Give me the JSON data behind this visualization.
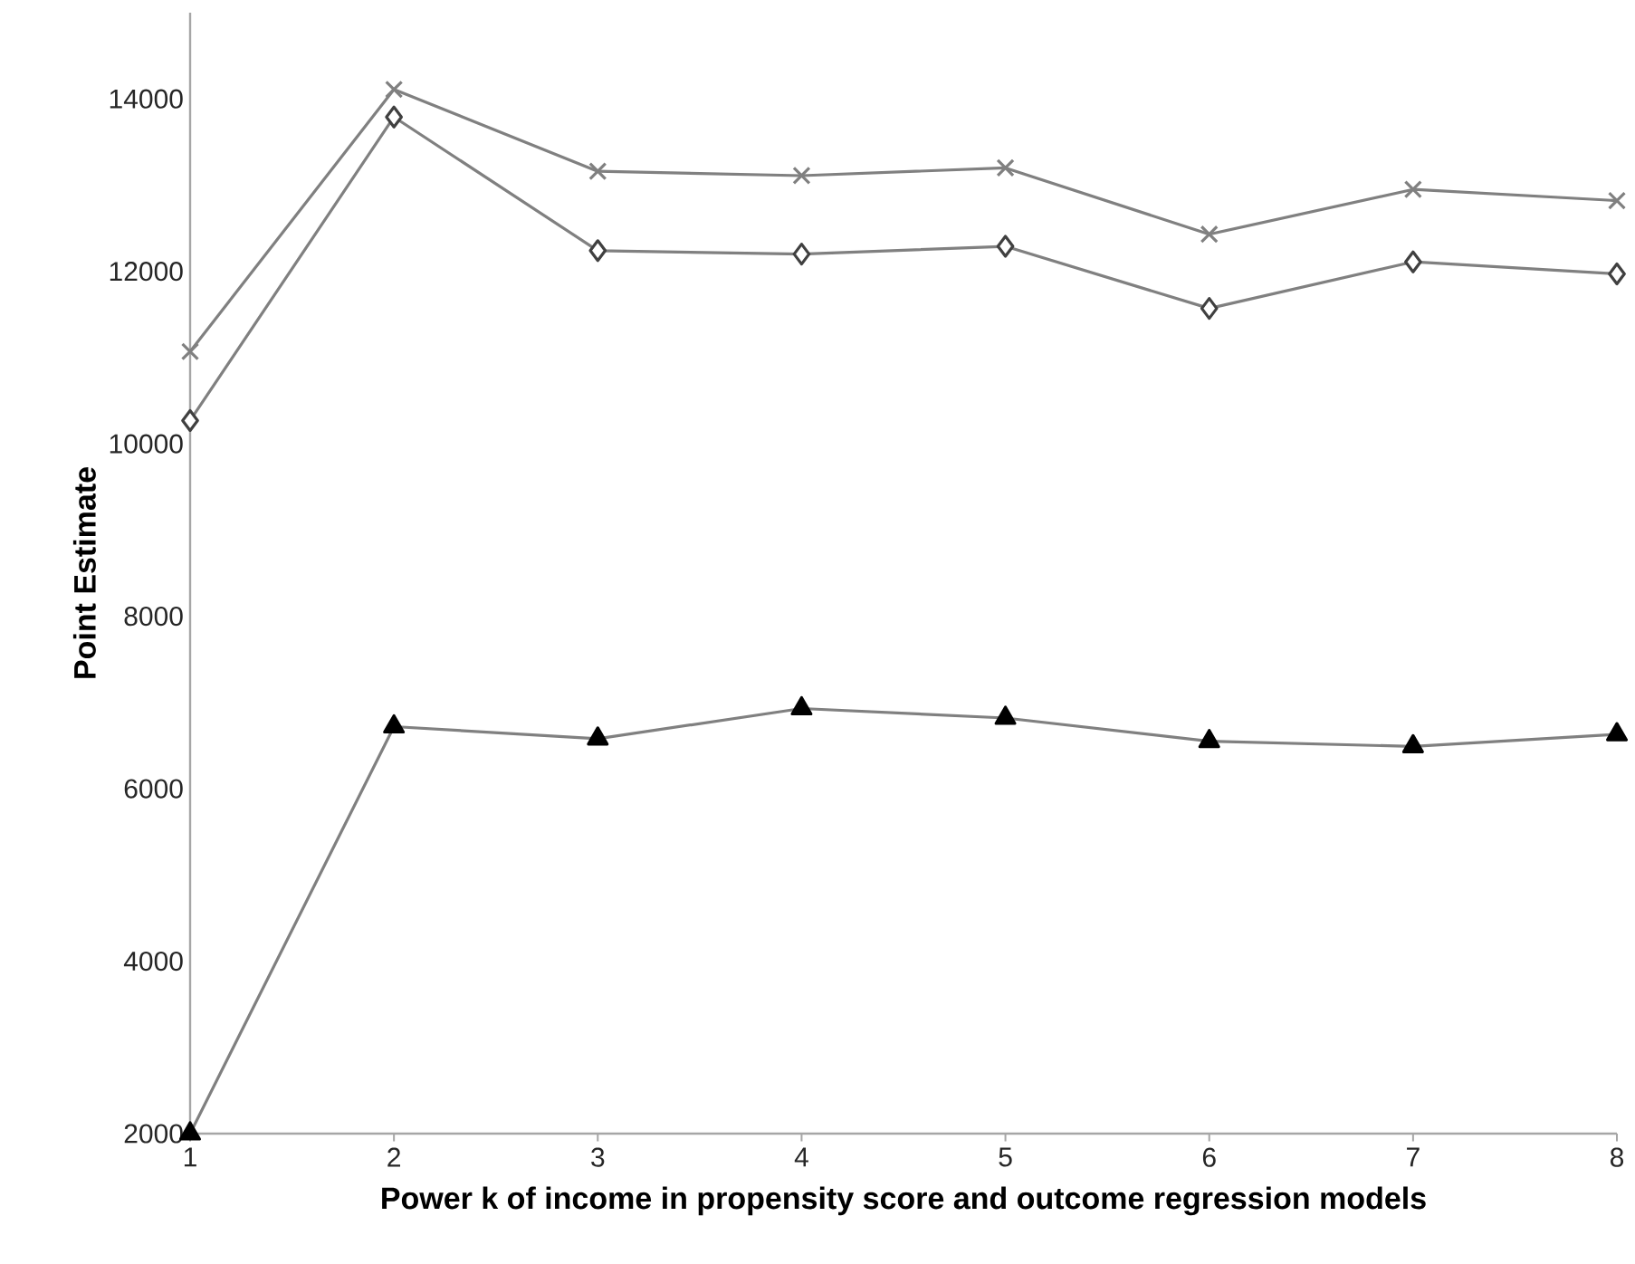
{
  "chart_data": {
    "type": "line",
    "xlabel": "Power k of income in propensity score and outcome regression models",
    "ylabel": "Point Estimate",
    "x": [
      1,
      2,
      3,
      4,
      5,
      6,
      7,
      8
    ],
    "series": [
      {
        "color": "#808080",
        "marker": "cross",
        "values": [
          11070,
          14110,
          13160,
          13110,
          13200,
          12430,
          12950,
          12820
        ]
      },
      {
        "color": "#808080",
        "marker": "diamond",
        "values": [
          10270,
          13790,
          12240,
          12200,
          12290,
          11570,
          12110,
          11970
        ]
      },
      {
        "color": "#808080",
        "marker": "triangle",
        "values": [
          2000,
          6720,
          6580,
          6930,
          6820,
          6550,
          6490,
          6630
        ]
      }
    ],
    "xlim": [
      1,
      8
    ],
    "xticks": [
      1,
      2,
      3,
      4,
      5,
      6,
      7,
      8
    ],
    "ylim": [
      2000,
      15000
    ],
    "yticks": [
      2000,
      4000,
      6000,
      8000,
      10000,
      12000,
      14000
    ],
    "grid": false,
    "line_style": "solid"
  }
}
